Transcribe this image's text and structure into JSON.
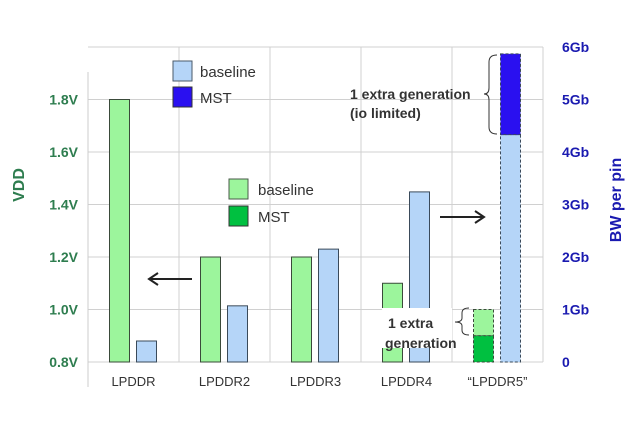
{
  "chart_data": {
    "type": "bar",
    "categories": [
      "LPDDR",
      "LPDDR2",
      "LPDDR3",
      "LPDDR4",
      "“LPDDR5”"
    ],
    "left_axis": {
      "label": "VDD",
      "ticks": [
        "0.8V",
        "1.0V",
        "1.2V",
        "1.4V",
        "1.6V",
        "1.8V"
      ],
      "tick_values": [
        0.8,
        1.0,
        1.2,
        1.4,
        1.6,
        1.8
      ],
      "range": [
        0.8,
        2.0
      ],
      "color": "#2e7d4f"
    },
    "right_axis": {
      "label": "BW per pin",
      "ticks": [
        "0",
        "1Gb",
        "2Gb",
        "3Gb",
        "4Gb",
        "5Gb",
        "6Gb"
      ],
      "tick_values": [
        0,
        1,
        2,
        3,
        4,
        5,
        6
      ],
      "range": [
        0,
        6
      ],
      "color": "#1a1ab0"
    },
    "grid": true,
    "series": [
      {
        "name": "baseline",
        "axis": "left",
        "color": "#9cf59c",
        "values": [
          1.8,
          1.2,
          1.2,
          1.1,
          1.0
        ]
      },
      {
        "name": "MST",
        "axis": "left",
        "color": "#00c040",
        "values": [
          null,
          null,
          null,
          null,
          0.9
        ]
      },
      {
        "name": "baseline",
        "axis": "right",
        "color": "#b5d5f8",
        "values": [
          0.4,
          1.07,
          2.15,
          3.24,
          4.33
        ]
      },
      {
        "name": "MST",
        "axis": "right",
        "color": "#2a10f0",
        "values": [
          null,
          null,
          null,
          null,
          5.87
        ]
      }
    ],
    "legends": [
      {
        "entries": [
          {
            "label": "baseline",
            "color": "#b5d5f8"
          },
          {
            "label": "MST",
            "color": "#2a10f0"
          }
        ]
      },
      {
        "entries": [
          {
            "label": "baseline",
            "color": "#9cf59c"
          },
          {
            "label": "MST",
            "color": "#00c040"
          }
        ]
      }
    ],
    "annotations": {
      "top": [
        "1 extra generation",
        "(io limited)"
      ],
      "bottom": [
        "1 extra",
        "generation"
      ]
    }
  }
}
